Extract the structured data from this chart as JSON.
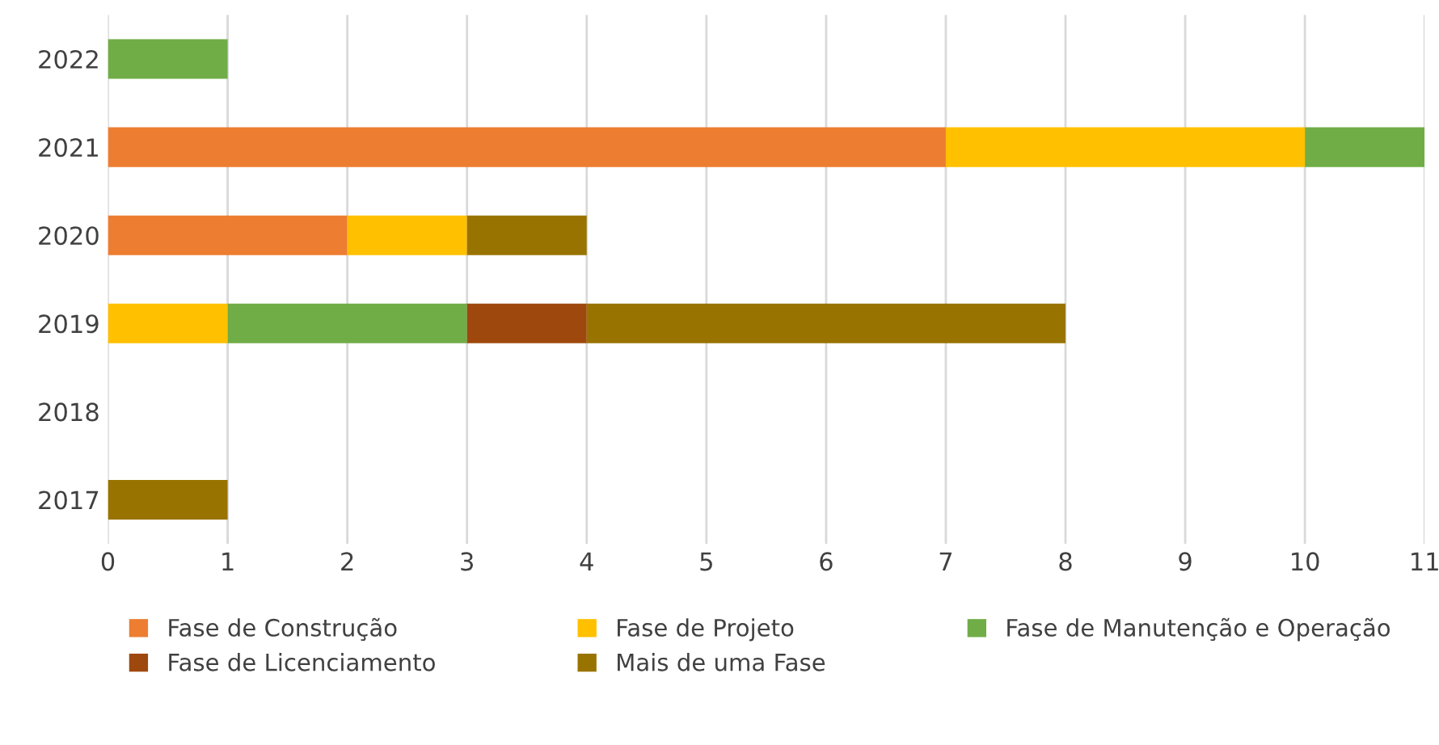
{
  "chart_data": {
    "type": "bar",
    "orientation": "horizontal",
    "stacked": true,
    "categories": [
      "2022",
      "2021",
      "2020",
      "2019",
      "2018",
      "2017"
    ],
    "series": [
      {
        "name": "Fase de Construção",
        "color": "#ed7d31",
        "values": [
          null,
          7,
          2,
          null,
          null,
          null
        ]
      },
      {
        "name": "Fase de Projeto",
        "color": "#ffc000",
        "values": [
          null,
          3,
          1,
          1,
          null,
          null
        ]
      },
      {
        "name": "Fase de Manutenção e Operação",
        "color": "#70ad47",
        "values": [
          1,
          1,
          null,
          2,
          null,
          null
        ]
      },
      {
        "name": "Fase de Licenciamento",
        "color": "#9e480e",
        "values": [
          null,
          null,
          null,
          1,
          null,
          null
        ]
      },
      {
        "name": "Mais de uma Fase",
        "color": "#997300",
        "values": [
          null,
          null,
          1,
          4,
          null,
          1
        ]
      }
    ],
    "xlim": [
      0,
      11
    ],
    "xticks": [
      0,
      1,
      2,
      3,
      4,
      5,
      6,
      7,
      8,
      9,
      10,
      11
    ],
    "grid": "x",
    "legend": "bottom"
  }
}
